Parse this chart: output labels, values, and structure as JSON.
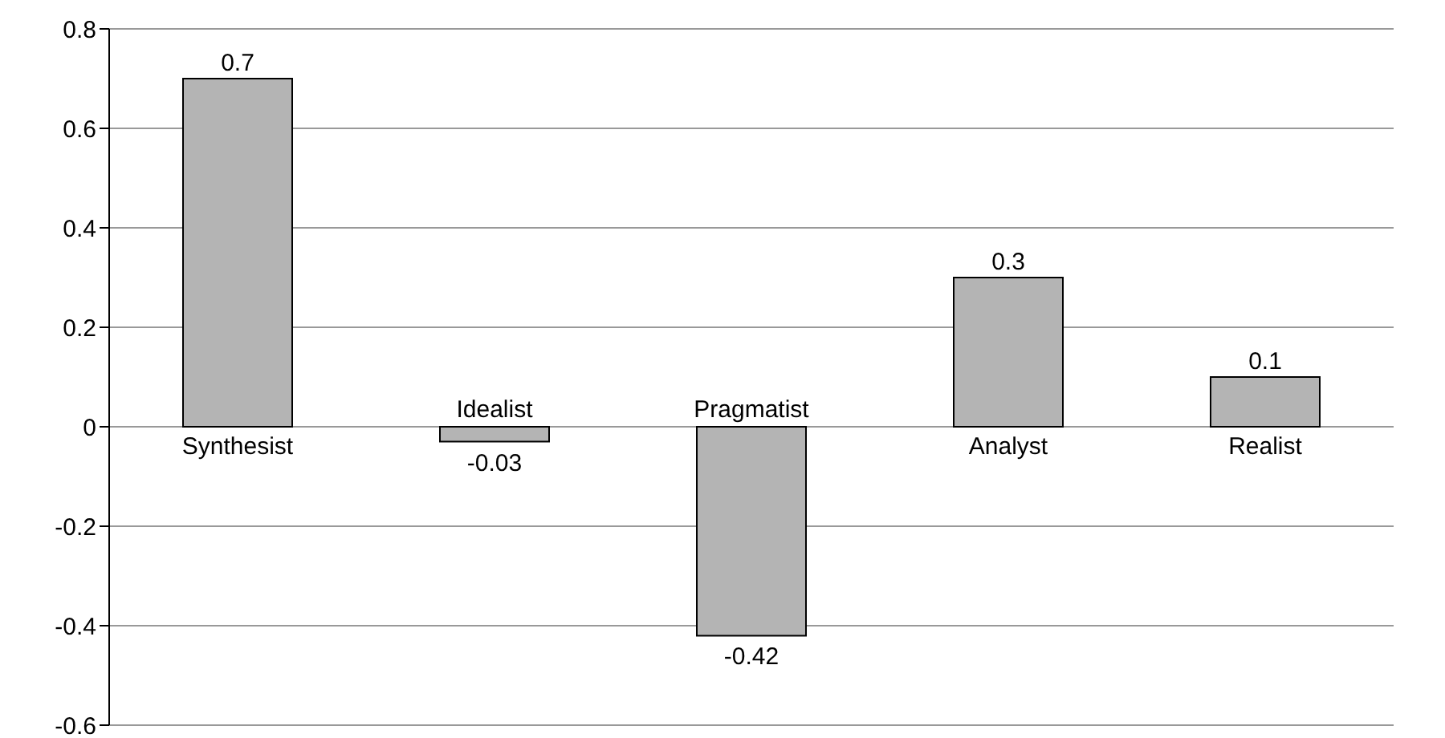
{
  "chart_data": {
    "type": "bar",
    "categories": [
      "Synthesist",
      "Idealist",
      "Pragmatist",
      "Analyst",
      "Realist"
    ],
    "values": [
      0.7,
      -0.03,
      -0.42,
      0.3,
      0.1
    ],
    "color": "#b4b4b4",
    "ylim": [
      -0.6,
      0.8
    ],
    "yticks": [
      -0.6,
      -0.4,
      -0.2,
      0,
      0.2,
      0.4,
      0.6,
      0.8
    ],
    "grid": "y",
    "data_labels": true
  }
}
